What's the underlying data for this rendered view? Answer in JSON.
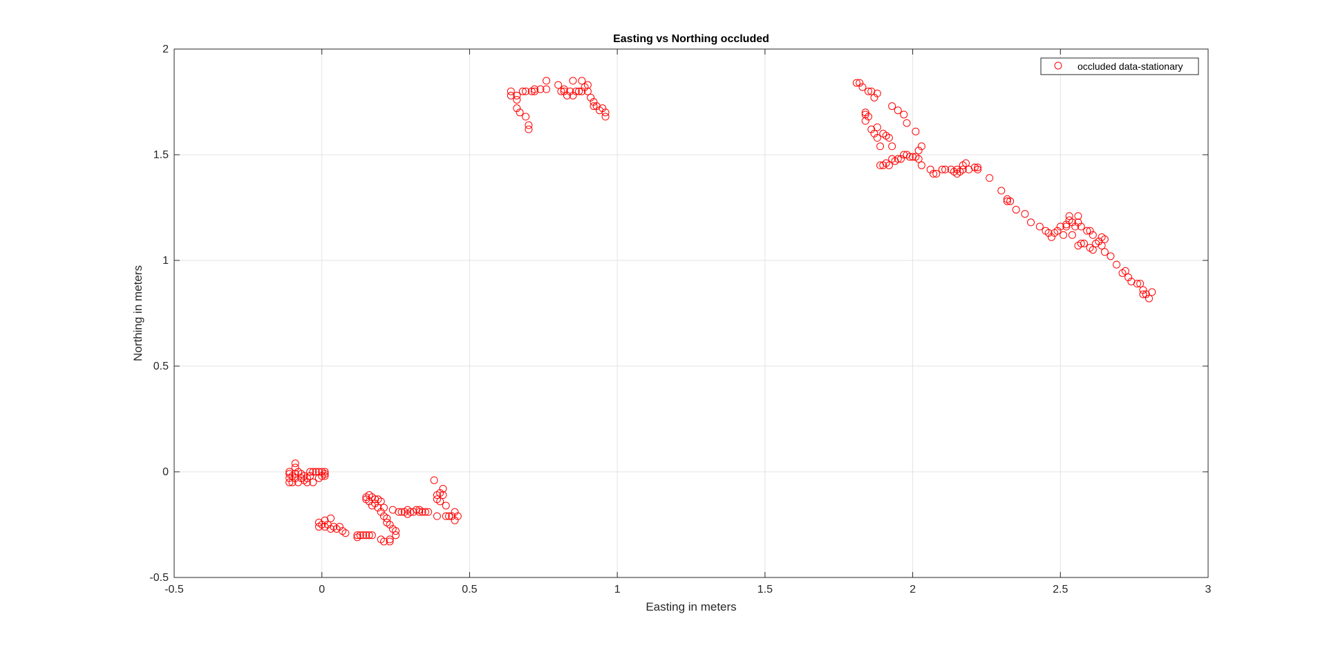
{
  "chart_data": {
    "type": "scatter",
    "title": "Easting vs Northing occluded",
    "xlabel": "Easting in meters",
    "ylabel": "Northing in meters",
    "xlim": [
      -0.5,
      3
    ],
    "ylim": [
      -0.5,
      2
    ],
    "xticks": [
      -0.5,
      0,
      0.5,
      1,
      1.5,
      2,
      2.5,
      3
    ],
    "yticks": [
      -0.5,
      0,
      0.5,
      1,
      1.5,
      2
    ],
    "xtick_labels": [
      "-0.5",
      "0",
      "0.5",
      "1",
      "1.5",
      "2",
      "2.5",
      "3"
    ],
    "ytick_labels": [
      "-0.5",
      "0",
      "0.5",
      "1",
      "1.5",
      "2"
    ],
    "grid": true,
    "legend_position": "top-right",
    "marker": "open-circle",
    "series": [
      {
        "name": "occluded data-stationary",
        "color": "#ff0000",
        "points": [
          [
            -0.11,
            -0.05
          ],
          [
            -0.11,
            -0.03
          ],
          [
            -0.11,
            -0.01
          ],
          [
            -0.11,
            0.0
          ],
          [
            -0.1,
            -0.05
          ],
          [
            -0.1,
            -0.02
          ],
          [
            -0.09,
            0.04
          ],
          [
            -0.09,
            0.02
          ],
          [
            -0.09,
            -0.01
          ],
          [
            -0.09,
            -0.03
          ],
          [
            -0.08,
            -0.05
          ],
          [
            -0.08,
            0.0
          ],
          [
            -0.07,
            -0.03
          ],
          [
            -0.07,
            -0.01
          ],
          [
            -0.06,
            -0.04
          ],
          [
            -0.06,
            -0.02
          ],
          [
            -0.05,
            -0.05
          ],
          [
            -0.05,
            -0.03
          ],
          [
            -0.04,
            -0.02
          ],
          [
            -0.04,
            0.0
          ],
          [
            -0.03,
            -0.05
          ],
          [
            -0.03,
            0.0
          ],
          [
            -0.02,
            0.0
          ],
          [
            -0.01,
            -0.03
          ],
          [
            -0.01,
            0.0
          ],
          [
            0.0,
            0.0
          ],
          [
            0.0,
            -0.02
          ],
          [
            0.01,
            -0.01
          ],
          [
            0.01,
            0.0
          ],
          [
            0.01,
            -0.02
          ],
          [
            -0.01,
            -0.26
          ],
          [
            -0.01,
            -0.24
          ],
          [
            0.0,
            -0.25
          ],
          [
            0.01,
            -0.23
          ],
          [
            0.01,
            -0.26
          ],
          [
            0.02,
            -0.25
          ],
          [
            0.03,
            -0.22
          ],
          [
            0.03,
            -0.27
          ],
          [
            0.04,
            -0.26
          ],
          [
            0.05,
            -0.27
          ],
          [
            0.06,
            -0.26
          ],
          [
            0.07,
            -0.28
          ],
          [
            0.08,
            -0.29
          ],
          [
            0.12,
            -0.31
          ],
          [
            0.12,
            -0.3
          ],
          [
            0.13,
            -0.3
          ],
          [
            0.14,
            -0.3
          ],
          [
            0.15,
            -0.3
          ],
          [
            0.16,
            -0.3
          ],
          [
            0.17,
            -0.3
          ],
          [
            0.2,
            -0.32
          ],
          [
            0.21,
            -0.33
          ],
          [
            0.23,
            -0.32
          ],
          [
            0.23,
            -0.33
          ],
          [
            0.15,
            -0.12
          ],
          [
            0.16,
            -0.11
          ],
          [
            0.15,
            -0.13
          ],
          [
            0.16,
            -0.14
          ],
          [
            0.17,
            -0.12
          ],
          [
            0.17,
            -0.16
          ],
          [
            0.18,
            -0.13
          ],
          [
            0.18,
            -0.15
          ],
          [
            0.19,
            -0.13
          ],
          [
            0.19,
            -0.17
          ],
          [
            0.2,
            -0.14
          ],
          [
            0.2,
            -0.19
          ],
          [
            0.21,
            -0.17
          ],
          [
            0.21,
            -0.21
          ],
          [
            0.22,
            -0.22
          ],
          [
            0.22,
            -0.24
          ],
          [
            0.23,
            -0.25
          ],
          [
            0.24,
            -0.27
          ],
          [
            0.24,
            -0.18
          ],
          [
            0.25,
            -0.28
          ],
          [
            0.25,
            -0.3
          ],
          [
            0.26,
            -0.19
          ],
          [
            0.27,
            -0.19
          ],
          [
            0.28,
            -0.19
          ],
          [
            0.29,
            -0.2
          ],
          [
            0.29,
            -0.18
          ],
          [
            0.3,
            -0.19
          ],
          [
            0.31,
            -0.19
          ],
          [
            0.32,
            -0.18
          ],
          [
            0.33,
            -0.19
          ],
          [
            0.33,
            -0.18
          ],
          [
            0.34,
            -0.19
          ],
          [
            0.35,
            -0.19
          ],
          [
            0.36,
            -0.19
          ],
          [
            0.38,
            -0.04
          ],
          [
            0.39,
            -0.11
          ],
          [
            0.39,
            -0.13
          ],
          [
            0.39,
            -0.21
          ],
          [
            0.4,
            -0.1
          ],
          [
            0.4,
            -0.14
          ],
          [
            0.41,
            -0.08
          ],
          [
            0.41,
            -0.11
          ],
          [
            0.42,
            -0.16
          ],
          [
            0.42,
            -0.21
          ],
          [
            0.43,
            -0.21
          ],
          [
            0.44,
            -0.21
          ],
          [
            0.45,
            -0.23
          ],
          [
            0.45,
            -0.19
          ],
          [
            0.46,
            -0.21
          ],
          [
            0.64,
            1.78
          ],
          [
            0.64,
            1.8
          ],
          [
            0.66,
            1.76
          ],
          [
            0.66,
            1.78
          ],
          [
            0.66,
            1.72
          ],
          [
            0.67,
            1.7
          ],
          [
            0.68,
            1.8
          ],
          [
            0.69,
            1.68
          ],
          [
            0.69,
            1.8
          ],
          [
            0.7,
            1.62
          ],
          [
            0.7,
            1.64
          ],
          [
            0.71,
            1.8
          ],
          [
            0.72,
            1.81
          ],
          [
            0.72,
            1.8
          ],
          [
            0.74,
            1.81
          ],
          [
            0.76,
            1.81
          ],
          [
            0.76,
            1.85
          ],
          [
            0.8,
            1.83
          ],
          [
            0.81,
            1.8
          ],
          [
            0.82,
            1.81
          ],
          [
            0.82,
            1.8
          ],
          [
            0.83,
            1.78
          ],
          [
            0.84,
            1.8
          ],
          [
            0.85,
            1.78
          ],
          [
            0.85,
            1.85
          ],
          [
            0.86,
            1.8
          ],
          [
            0.87,
            1.8
          ],
          [
            0.88,
            1.85
          ],
          [
            0.88,
            1.8
          ],
          [
            0.89,
            1.82
          ],
          [
            0.9,
            1.8
          ],
          [
            0.9,
            1.83
          ],
          [
            0.91,
            1.77
          ],
          [
            0.92,
            1.75
          ],
          [
            0.92,
            1.73
          ],
          [
            0.93,
            1.73
          ],
          [
            0.94,
            1.71
          ],
          [
            0.95,
            1.72
          ],
          [
            0.96,
            1.68
          ],
          [
            0.96,
            1.7
          ],
          [
            1.81,
            1.84
          ],
          [
            1.82,
            1.84
          ],
          [
            1.83,
            1.82
          ],
          [
            1.84,
            1.7
          ],
          [
            1.84,
            1.66
          ],
          [
            1.84,
            1.69
          ],
          [
            1.85,
            1.8
          ],
          [
            1.85,
            1.68
          ],
          [
            1.86,
            1.8
          ],
          [
            1.86,
            1.62
          ],
          [
            1.87,
            1.6
          ],
          [
            1.87,
            1.77
          ],
          [
            1.88,
            1.79
          ],
          [
            1.88,
            1.63
          ],
          [
            1.88,
            1.58
          ],
          [
            1.89,
            1.54
          ],
          [
            1.89,
            1.45
          ],
          [
            1.9,
            1.6
          ],
          [
            1.9,
            1.45
          ],
          [
            1.91,
            1.46
          ],
          [
            1.91,
            1.59
          ],
          [
            1.92,
            1.45
          ],
          [
            1.92,
            1.58
          ],
          [
            1.93,
            1.48
          ],
          [
            1.93,
            1.73
          ],
          [
            1.93,
            1.54
          ],
          [
            1.94,
            1.47
          ],
          [
            1.95,
            1.48
          ],
          [
            1.95,
            1.71
          ],
          [
            1.96,
            1.48
          ],
          [
            1.97,
            1.69
          ],
          [
            1.97,
            1.5
          ],
          [
            1.98,
            1.5
          ],
          [
            1.98,
            1.65
          ],
          [
            1.99,
            1.49
          ],
          [
            2.0,
            1.49
          ],
          [
            2.01,
            1.61
          ],
          [
            2.01,
            1.49
          ],
          [
            2.02,
            1.52
          ],
          [
            2.02,
            1.48
          ],
          [
            2.03,
            1.54
          ],
          [
            2.03,
            1.45
          ],
          [
            2.06,
            1.43
          ],
          [
            2.07,
            1.41
          ],
          [
            2.08,
            1.41
          ],
          [
            2.1,
            1.43
          ],
          [
            2.11,
            1.43
          ],
          [
            2.13,
            1.43
          ],
          [
            2.14,
            1.42
          ],
          [
            2.15,
            1.43
          ],
          [
            2.15,
            1.41
          ],
          [
            2.16,
            1.42
          ],
          [
            2.17,
            1.43
          ],
          [
            2.17,
            1.45
          ],
          [
            2.18,
            1.46
          ],
          [
            2.19,
            1.43
          ],
          [
            2.21,
            1.44
          ],
          [
            2.22,
            1.44
          ],
          [
            2.22,
            1.43
          ],
          [
            2.26,
            1.39
          ],
          [
            2.3,
            1.33
          ],
          [
            2.32,
            1.28
          ],
          [
            2.32,
            1.29
          ],
          [
            2.33,
            1.28
          ],
          [
            2.35,
            1.24
          ],
          [
            2.38,
            1.22
          ],
          [
            2.4,
            1.18
          ],
          [
            2.43,
            1.16
          ],
          [
            2.45,
            1.14
          ],
          [
            2.46,
            1.13
          ],
          [
            2.47,
            1.11
          ],
          [
            2.48,
            1.13
          ],
          [
            2.49,
            1.14
          ],
          [
            2.5,
            1.16
          ],
          [
            2.51,
            1.12
          ],
          [
            2.52,
            1.16
          ],
          [
            2.52,
            1.17
          ],
          [
            2.53,
            1.21
          ],
          [
            2.53,
            1.19
          ],
          [
            2.54,
            1.12
          ],
          [
            2.54,
            1.18
          ],
          [
            2.55,
            1.16
          ],
          [
            2.56,
            1.07
          ],
          [
            2.56,
            1.21
          ],
          [
            2.56,
            1.18
          ],
          [
            2.57,
            1.08
          ],
          [
            2.57,
            1.16
          ],
          [
            2.58,
            1.08
          ],
          [
            2.59,
            1.14
          ],
          [
            2.6,
            1.06
          ],
          [
            2.6,
            1.14
          ],
          [
            2.61,
            1.05
          ],
          [
            2.61,
            1.12
          ],
          [
            2.62,
            1.08
          ],
          [
            2.63,
            1.09
          ],
          [
            2.64,
            1.11
          ],
          [
            2.64,
            1.07
          ],
          [
            2.65,
            1.1
          ],
          [
            2.65,
            1.04
          ],
          [
            2.67,
            1.02
          ],
          [
            2.69,
            0.98
          ],
          [
            2.71,
            0.94
          ],
          [
            2.72,
            0.95
          ],
          [
            2.73,
            0.92
          ],
          [
            2.74,
            0.9
          ],
          [
            2.76,
            0.89
          ],
          [
            2.77,
            0.89
          ],
          [
            2.78,
            0.86
          ],
          [
            2.78,
            0.84
          ],
          [
            2.79,
            0.84
          ],
          [
            2.8,
            0.82
          ],
          [
            2.81,
            0.85
          ]
        ]
      }
    ]
  }
}
